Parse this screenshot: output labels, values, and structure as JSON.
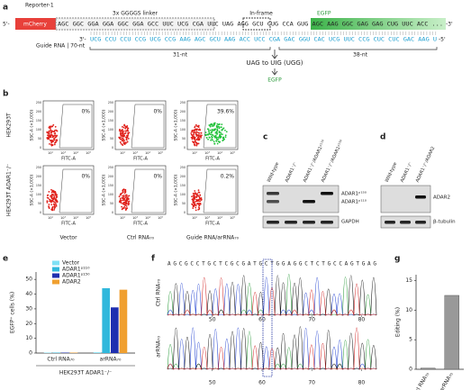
{
  "panel_a": {
    "label": "a",
    "reporter": "Reporter-1",
    "five_prime": "5'-",
    "mcherry": "mCherry",
    "linker": "3x GGGGS linker",
    "inframe": "In-frame",
    "egfp": "EGFP",
    "top_seq": "AGC GGC GGA GGA GGC GGA GCC UUC UCG CGA UUC UAG AGG GCU CUG CCA GUG AGC AAG GGC GAG GAG CUG UUC ACC ...",
    "three_prime_end": "-3'",
    "guide_three": "3'-",
    "guide_label": "Guide RNA | 70-nt",
    "guide_seq": "UCG CCU CCU CCG UCG CCG AAG AGC GCU AAG ACC UCC CGA GAC GGU CAC UCG UUC CCG CUC CUC GAC AAG U",
    "guide_five": "-5'",
    "left_len": "31-nt",
    "right_len": "38-nt",
    "edit": "UAG to UIG (UGG)",
    "product": "EGFP"
  },
  "panel_b": {
    "label": "b",
    "rows": [
      "HEK293T",
      "HEK293T ADAR1⁻/⁻"
    ],
    "columns": [
      "Vector",
      "Ctrl RNA₇₀",
      "Guide RNA/arRNA₇₀"
    ],
    "y_label": "SSC-A (×1,000)",
    "x_label": "FITC-A",
    "xticks": [
      "10²",
      "10³",
      "10⁴",
      "10⁵"
    ],
    "yticks": [
      0,
      50,
      100,
      150,
      200,
      250
    ],
    "percents": [
      [
        "0%",
        "0%",
        "39.6%"
      ],
      [
        "0%",
        "0%",
        "0.2%"
      ]
    ]
  },
  "panel_c": {
    "label": "c",
    "lanes": [
      "Wild-type",
      "ADAR1⁻/⁻",
      "ADAR1⁻/⁻/ADAR1ᵖ¹¹⁰",
      "ADAR1⁻/⁻/ADAR1ᵖ¹⁵⁰"
    ],
    "bands": [
      "ADAR1ᵖ¹⁵⁰",
      "ADAR1ᵖ¹¹⁰",
      "GAPDH"
    ]
  },
  "panel_d": {
    "label": "d",
    "lanes": [
      "Wild-type",
      "ADAR1⁻/⁻",
      "ADAR1⁻/⁻/ADAR2"
    ],
    "bands": [
      "ADAR2",
      "β-tubulin"
    ]
  },
  "panel_f": {
    "label": "f",
    "sequence": "AGCGCCTGCTCGCGATGCTGGAGGCTCTGCCAGTGAG",
    "rows": [
      "Ctrl RNA₇₀",
      "arRNA₇₀"
    ],
    "xlim": [
      41,
      83
    ],
    "xticks": [
      50,
      60,
      70,
      80
    ]
  },
  "chart_data": [
    {
      "type": "bar",
      "label": "e",
      "y_label": "EGFP⁺ cells (%)",
      "x_label": "HEK293T ADAR1⁻/⁻",
      "categories": [
        "Ctrl RNA₇₀",
        "arRNA₇₀"
      ],
      "series": [
        {
          "name": "Vector",
          "color": "#7fe0f5",
          "values": [
            0.3,
            0.5
          ]
        },
        {
          "name": "ADAR1ᵖ¹¹⁰",
          "color": "#31b8dc",
          "values": [
            0.3,
            44
          ]
        },
        {
          "name": "ADAR1ᵖ¹⁵⁰",
          "color": "#1f2fb0",
          "values": [
            0.3,
            31
          ]
        },
        {
          "name": "ADAR2",
          "color": "#f0a030",
          "values": [
            0.3,
            43
          ]
        }
      ],
      "ylim": [
        0,
        55
      ],
      "yticks": [
        0,
        10,
        20,
        30,
        40,
        50
      ]
    },
    {
      "type": "bar",
      "label": "g",
      "y_label": "Editing (%)",
      "categories": [
        "Ctrl RNA₇₀",
        "arRNA₇₀"
      ],
      "values": [
        0.2,
        12.5
      ],
      "color": "#999999",
      "ylim": [
        0,
        16
      ],
      "yticks": [
        0,
        5,
        10,
        15
      ]
    }
  ]
}
